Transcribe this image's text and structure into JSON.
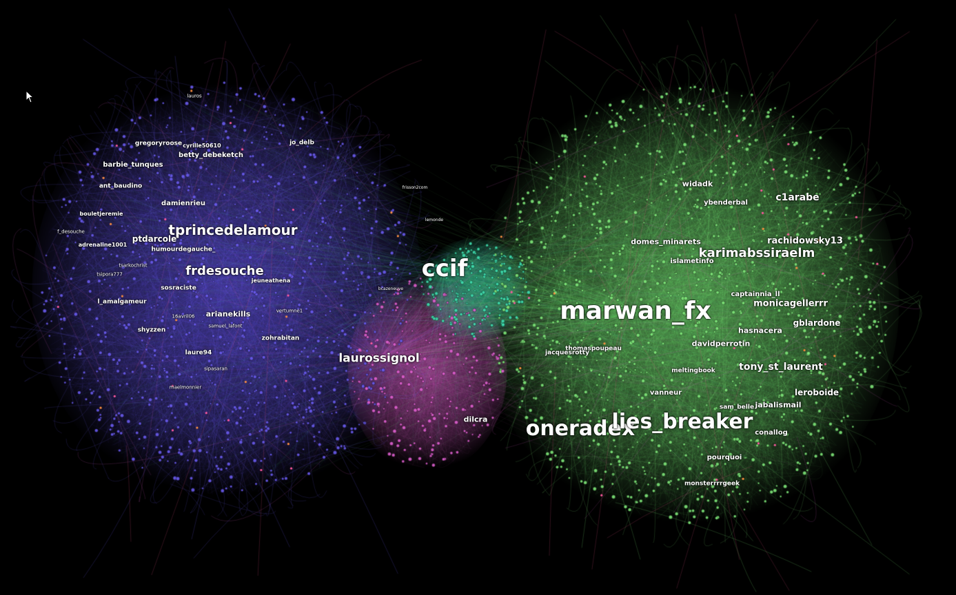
{
  "colors": {
    "background": "#000000",
    "left_cluster": "#6a5cf0",
    "right_cluster": "#7fe87a",
    "bridge_cluster": "#e060d0",
    "teal_core": "#40e0b0",
    "label": "#ffffff"
  },
  "labels": [
    {
      "text": "ccif",
      "size": 34,
      "region": "center",
      "cursor": false
    },
    {
      "text": "marwan_fx",
      "size": 36,
      "region": "right"
    },
    {
      "text": "oneradex",
      "size": 30,
      "region": "right"
    },
    {
      "text": "lies_breaker",
      "size": 30,
      "region": "right"
    },
    {
      "text": "tprincedelamour",
      "size": 20,
      "region": "left"
    },
    {
      "text": "frdesouche",
      "size": 18,
      "region": "left"
    },
    {
      "text": "laurossignol",
      "size": 17,
      "region": "bridge"
    },
    {
      "text": "karimabssiraelm",
      "size": 18,
      "region": "right"
    },
    {
      "text": "c1arabe",
      "size": 14,
      "region": "right"
    },
    {
      "text": "rachidowsky13",
      "size": 13,
      "region": "right"
    },
    {
      "text": "monicagellerrr",
      "size": 13,
      "region": "right"
    },
    {
      "text": "tony_st_laurent",
      "size": 14,
      "region": "right"
    },
    {
      "text": "gblardone",
      "size": 12,
      "region": "right"
    },
    {
      "text": "leroboide",
      "size": 12,
      "region": "right"
    },
    {
      "text": "widadk",
      "size": 11,
      "region": "right"
    },
    {
      "text": "ybenderbal",
      "size": 10,
      "region": "right"
    },
    {
      "text": "domes_minarets",
      "size": 11,
      "region": "right"
    },
    {
      "text": "islametinfo",
      "size": 10,
      "region": "right"
    },
    {
      "text": "davidperrotin",
      "size": 11,
      "region": "right"
    },
    {
      "text": "meltingbook",
      "size": 9,
      "region": "right"
    },
    {
      "text": "vanneur",
      "size": 10,
      "region": "right"
    },
    {
      "text": "thomaspoupeau",
      "size": 9,
      "region": "right"
    },
    {
      "text": "jacquesrotty",
      "size": 9,
      "region": "right"
    },
    {
      "text": "pourquoi",
      "size": 10,
      "region": "right"
    },
    {
      "text": "conallog",
      "size": 10,
      "region": "right"
    },
    {
      "text": "captainnia_ll",
      "size": 10,
      "region": "right"
    },
    {
      "text": "jabalismail",
      "size": 11,
      "region": "right"
    },
    {
      "text": "hasnacera",
      "size": 11,
      "region": "right"
    },
    {
      "text": "sam_belle",
      "size": 9,
      "region": "right"
    },
    {
      "text": "monsterrrrgeek",
      "size": 9,
      "region": "right"
    },
    {
      "text": "dilcra",
      "size": 11,
      "region": "bridge"
    },
    {
      "text": "betty_debeketch",
      "size": 10,
      "region": "left"
    },
    {
      "text": "barbie_tunques",
      "size": 10,
      "region": "left"
    },
    {
      "text": "ant_baudino",
      "size": 9,
      "region": "left"
    },
    {
      "text": "damienrieu",
      "size": 10,
      "region": "left"
    },
    {
      "text": "ptdarcole",
      "size": 12,
      "region": "left"
    },
    {
      "text": "humourdegauche_",
      "size": 9,
      "region": "left"
    },
    {
      "text": "arianekills",
      "size": 11,
      "region": "left"
    },
    {
      "text": "shyzzen",
      "size": 9,
      "region": "left"
    },
    {
      "text": "laure94",
      "size": 9,
      "region": "left"
    },
    {
      "text": "zohrabitan",
      "size": 9,
      "region": "left"
    },
    {
      "text": "l_amalgameur",
      "size": 9,
      "region": "left"
    },
    {
      "text": "sosraciste",
      "size": 9,
      "region": "left"
    },
    {
      "text": "jo_delb",
      "size": 9,
      "region": "left"
    },
    {
      "text": "gregoryroose",
      "size": 9,
      "region": "left"
    },
    {
      "text": "cyrille50610",
      "size": 8,
      "region": "left"
    },
    {
      "text": "bouletjeremie",
      "size": 8,
      "region": "left"
    },
    {
      "text": "adrenaline1001",
      "size": 8,
      "region": "left"
    },
    {
      "text": "jeuneathena",
      "size": 8,
      "region": "left"
    },
    {
      "text": "tsarkochrist",
      "size": 7,
      "region": "left"
    },
    {
      "text": "lauros",
      "size": 7,
      "region": "left"
    },
    {
      "text": "f_desouche",
      "size": 7,
      "region": "left"
    },
    {
      "text": "samuel_lafont",
      "size": 7,
      "region": "left"
    },
    {
      "text": "vertumne1",
      "size": 7,
      "region": "left"
    },
    {
      "text": "maelmonnier",
      "size": 7,
      "region": "left"
    },
    {
      "text": "sipasaran",
      "size": 7,
      "region": "left"
    },
    {
      "text": "frisson2com",
      "size": 6,
      "region": "bridge"
    },
    {
      "text": "bcazeneuve",
      "size": 6,
      "region": "bridge"
    },
    {
      "text": "tsipora777",
      "size": 7,
      "region": "left"
    },
    {
      "text": "16avril06",
      "size": 7,
      "region": "left"
    },
    {
      "text": "lemonde",
      "size": 6,
      "region": "bridge"
    }
  ]
}
